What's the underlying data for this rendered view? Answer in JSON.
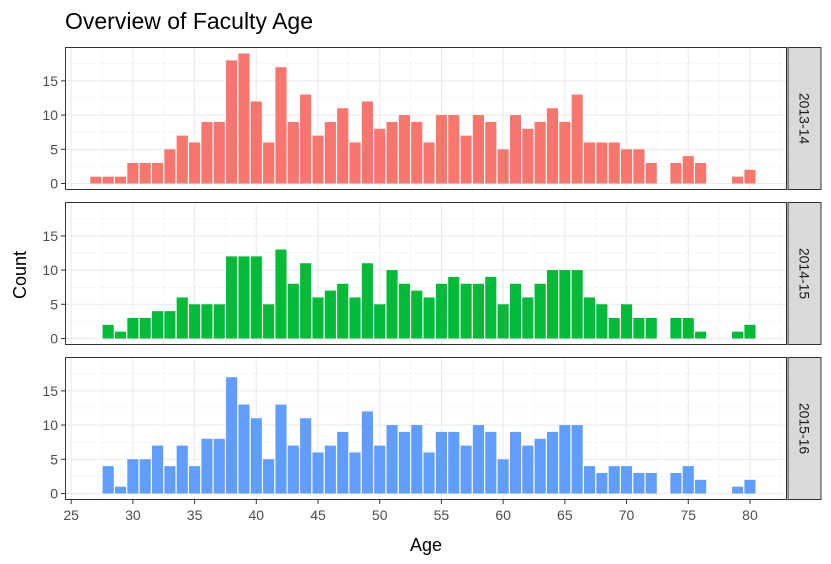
{
  "chart_data": {
    "type": "bar",
    "title": "Overview of Faculty Age",
    "xlabel": "Age",
    "ylabel": "Count",
    "xlim": [
      24.5,
      83
    ],
    "ylim": [
      0,
      19
    ],
    "x_ticks": [
      25,
      30,
      35,
      40,
      45,
      50,
      55,
      60,
      65,
      70,
      75,
      80
    ],
    "y_ticks": [
      0,
      5,
      10,
      15
    ],
    "grid": true,
    "legend": "none",
    "facet": "rows",
    "x": [
      27,
      28,
      29,
      30,
      31,
      32,
      33,
      34,
      35,
      36,
      37,
      38,
      39,
      40,
      41,
      42,
      43,
      44,
      45,
      46,
      47,
      48,
      49,
      50,
      51,
      52,
      53,
      54,
      55,
      56,
      57,
      58,
      59,
      60,
      61,
      62,
      63,
      64,
      65,
      66,
      67,
      68,
      69,
      70,
      71,
      72,
      73,
      74,
      75,
      76,
      77,
      78,
      79,
      80
    ],
    "series": [
      {
        "name": "2013-14",
        "color": "#F8766D",
        "values": [
          1,
          1,
          1,
          3,
          3,
          3,
          5,
          7,
          6,
          9,
          9,
          18,
          19,
          12,
          6,
          17,
          9,
          13,
          7,
          9,
          11,
          6,
          12,
          8,
          9,
          10,
          9,
          6,
          10,
          10,
          7,
          10,
          9,
          5,
          10,
          8,
          9,
          11,
          9,
          13,
          6,
          6,
          6,
          5,
          5,
          3,
          0,
          3,
          4,
          3,
          0,
          0,
          1,
          2
        ]
      },
      {
        "name": "2014-15",
        "color": "#00BA38",
        "values": [
          0,
          2,
          1,
          3,
          3,
          4,
          4,
          6,
          5,
          5,
          5,
          12,
          12,
          12,
          5,
          13,
          8,
          11,
          6,
          7,
          8,
          6,
          11,
          5,
          10,
          8,
          7,
          6,
          8,
          9,
          8,
          8,
          9,
          5,
          8,
          6,
          8,
          10,
          10,
          10,
          6,
          5,
          3,
          5,
          3,
          3,
          0,
          3,
          3,
          1,
          0,
          0,
          1,
          2
        ]
      },
      {
        "name": "2015-16",
        "color": "#619CFF",
        "values": [
          0,
          4,
          1,
          5,
          5,
          7,
          4,
          7,
          4,
          8,
          8,
          17,
          13,
          11,
          5,
          13,
          7,
          11,
          6,
          7,
          9,
          6,
          12,
          7,
          10,
          9,
          10,
          6,
          9,
          9,
          7,
          10,
          9,
          5,
          9,
          7,
          8,
          9,
          10,
          10,
          4,
          3,
          4,
          4,
          3,
          3,
          0,
          3,
          4,
          2,
          0,
          0,
          1,
          2
        ]
      }
    ]
  }
}
